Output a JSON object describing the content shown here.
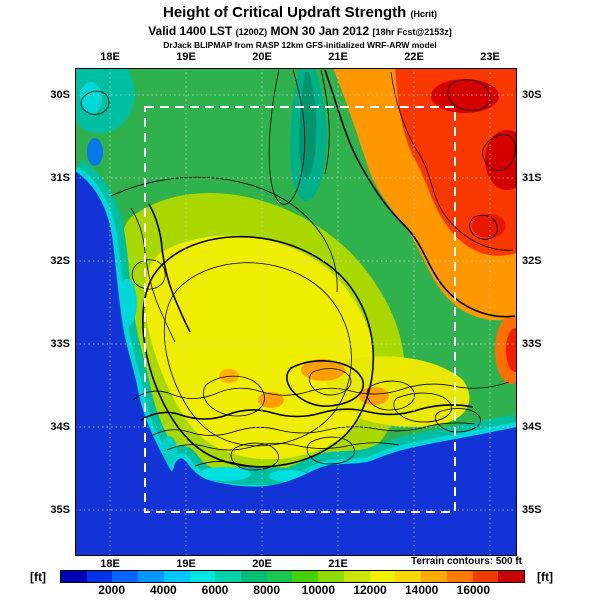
{
  "header": {
    "title_main": "Height of Critical Updraft Strength",
    "title_suffix": "(Hcrit)",
    "valid_prefix": "Valid 1400 LST",
    "valid_z": "(1200Z)",
    "valid_date": "MON 30 Jan 2012",
    "valid_fcst": "[18hr Fcst@2153z]",
    "model_line": "DrJack BLIPMAP from RASP 12km GFS-initialized WRF-ARW model"
  },
  "map": {
    "top_labels": [
      "18E",
      "19E",
      "20E",
      "21E",
      "22E",
      "23E"
    ],
    "bottom_labels": [
      "18E",
      "19E",
      "20E",
      "21E"
    ],
    "left_labels": [
      "30S",
      "31S",
      "32S",
      "33S",
      "34S",
      "35S"
    ],
    "right_labels": [
      "30S",
      "31S",
      "32S",
      "33S",
      "34S",
      "35S"
    ],
    "terrain_note": "Terrain contours: 500 ft",
    "ocean_color": "#1233d6",
    "domain_box_color": "#ffffff",
    "contour_color": "#000000"
  },
  "colorbar": {
    "unit_left": "[ft]",
    "unit_right": "[ft]",
    "min": 0,
    "max": 18000,
    "step": 1000,
    "tick_step": 2000,
    "tick_labels": [
      "2000",
      "4000",
      "6000",
      "8000",
      "10000",
      "12000",
      "14000",
      "16000"
    ],
    "colors": [
      "#0000b4",
      "#0032e6",
      "#0064ff",
      "#0096ff",
      "#00c8ff",
      "#00e6e6",
      "#00d2aa",
      "#00be78",
      "#14c850",
      "#46d200",
      "#8cdc00",
      "#c8e600",
      "#f0f000",
      "#ffd700",
      "#ffaa00",
      "#ff7800",
      "#f03c00",
      "#c80000"
    ]
  }
}
